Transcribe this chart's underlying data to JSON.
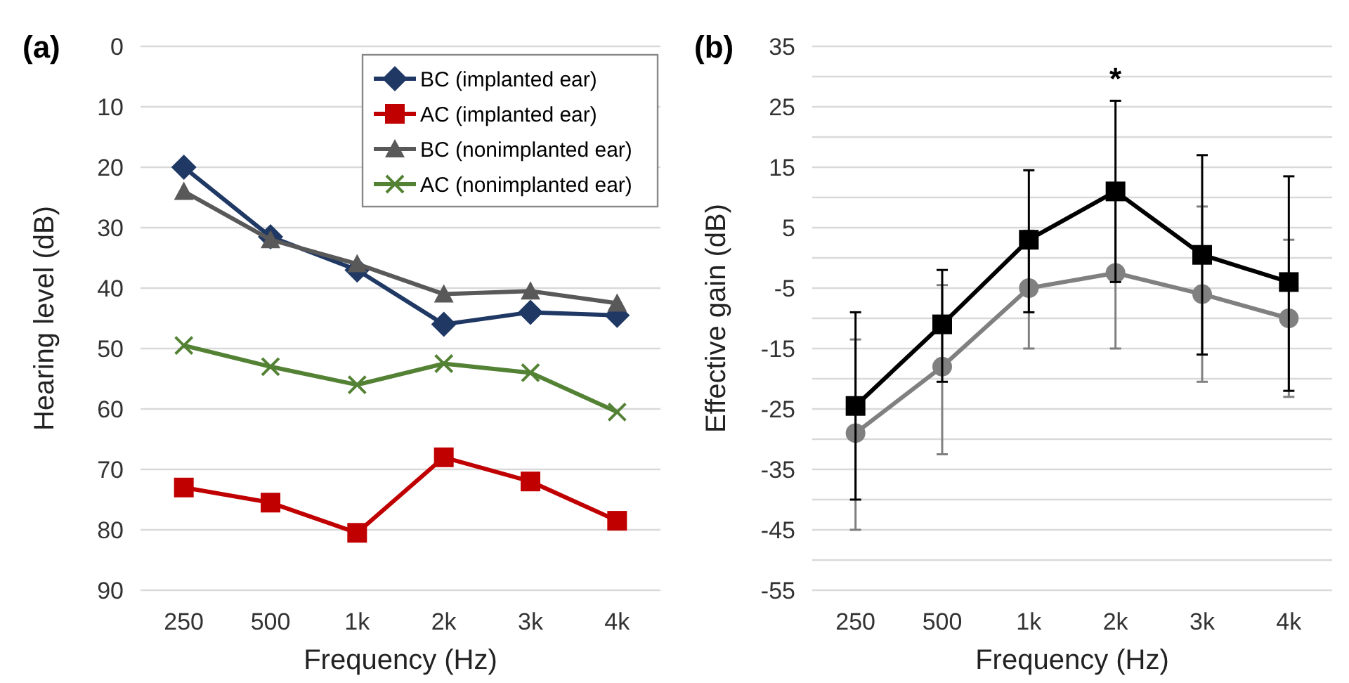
{
  "chart_data": [
    {
      "type": "line",
      "title": "(a)",
      "xlabel": "Frequency (Hz)",
      "ylabel": "Hearing level (dB)",
      "categories": [
        "250",
        "500",
        "1k",
        "2k",
        "3k",
        "4k"
      ],
      "ylim": [
        90,
        0
      ],
      "yticks": [
        0,
        10,
        20,
        30,
        40,
        50,
        60,
        70,
        80,
        90
      ],
      "grid": "y",
      "legend": "top right",
      "series": [
        {
          "name": "BC (implanted ear)",
          "color": "#1f3864",
          "marker": "diamond",
          "values": [
            20,
            31.5,
            37,
            46,
            44,
            44.5
          ]
        },
        {
          "name": "AC (implanted ear)",
          "color": "#c00000",
          "marker": "square",
          "values": [
            73,
            75.5,
            80.5,
            68,
            72,
            78.5
          ]
        },
        {
          "name": "BC (nonimplanted ear)",
          "color": "#595959",
          "marker": "triangle",
          "values": [
            24,
            32,
            36,
            41,
            40.5,
            42.5
          ]
        },
        {
          "name": "AC (nonimplanted ear)",
          "color": "#548235",
          "marker": "cross",
          "values": [
            49.5,
            53,
            56,
            52.5,
            54,
            60.5
          ]
        }
      ]
    },
    {
      "type": "line",
      "title": "(b)",
      "xlabel": "Frequency (Hz)",
      "ylabel": "Effective gain (dB)",
      "categories": [
        "250",
        "500",
        "1k",
        "2k",
        "3k",
        "4k"
      ],
      "ylim": [
        -55,
        35
      ],
      "yticks": [
        -55,
        {
          "value": -50,
          "label": null
        },
        -45,
        {
          "value": -40,
          "label": null
        },
        -35,
        {
          "value": -30,
          "label": null
        },
        -25,
        {
          "value": -20,
          "label": null
        },
        -15,
        {
          "value": -10,
          "label": null
        },
        -5,
        {
          "value": 0,
          "label": null
        },
        5,
        {
          "value": 10,
          "label": null
        },
        15,
        {
          "value": 20,
          "label": null
        },
        25,
        {
          "value": 30,
          "label": null
        },
        35
      ],
      "grid": "y",
      "annotations": [
        "*"
      ],
      "series": [
        {
          "color": "#808080",
          "marker": "circle",
          "values": [
            -29,
            -18,
            -5,
            -2.5,
            -6,
            -10
          ],
          "errors": [
            [
              -45,
              -13.5
            ],
            [
              -32.5,
              -4.5
            ],
            [
              -15,
              4.5
            ],
            [
              -15,
              10
            ],
            [
              -20.5,
              8.5
            ],
            [
              -23,
              3
            ]
          ]
        },
        {
          "color": "#000000",
          "marker": "square",
          "values": [
            -24.5,
            -11,
            3,
            11,
            0.5,
            -4
          ],
          "errors": [
            [
              -40,
              -9
            ],
            [
              -20.5,
              -2
            ],
            [
              -9,
              14.5
            ],
            [
              -4,
              26
            ],
            [
              -16,
              17
            ],
            [
              -22,
              13.5
            ]
          ]
        }
      ]
    }
  ]
}
